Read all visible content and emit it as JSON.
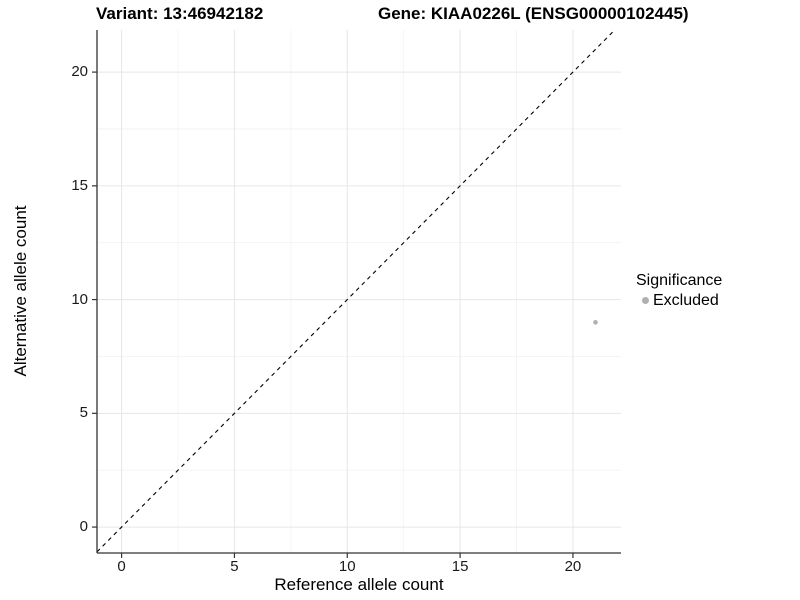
{
  "chart_data": {
    "type": "scatter",
    "titles": [
      "Variant: 13:46942182",
      "Gene: KIAA0226L (ENSG00000102445)"
    ],
    "xlabel": "Reference allele count",
    "ylabel": "Alternative allele count",
    "x_ticks": [
      0,
      5,
      10,
      15,
      20
    ],
    "y_ticks": [
      0,
      5,
      10,
      15,
      20
    ],
    "xlim": [
      -1.09,
      22.13
    ],
    "ylim": [
      -1.14,
      21.85
    ],
    "grid": "major and minor gridlines, light gray, on white panel",
    "identity_line": {
      "style": "dashed",
      "equation": "y = x",
      "color": "#000000"
    },
    "series": [
      {
        "name": "Excluded",
        "color": "#b0b0b0",
        "points": [
          {
            "x": 21,
            "y": 9
          }
        ]
      }
    ],
    "legend": {
      "title": "Significance",
      "position": "right",
      "entries": [
        {
          "label": "Excluded",
          "color": "#b0b0b0"
        }
      ]
    }
  },
  "colors": {
    "background": "#ffffff",
    "grid_major": "#e6e6e6",
    "grid_minor": "#f2f2f2",
    "axis_line": "#333333",
    "tick_text": "#1a1a1a",
    "title_text": "#000000"
  }
}
